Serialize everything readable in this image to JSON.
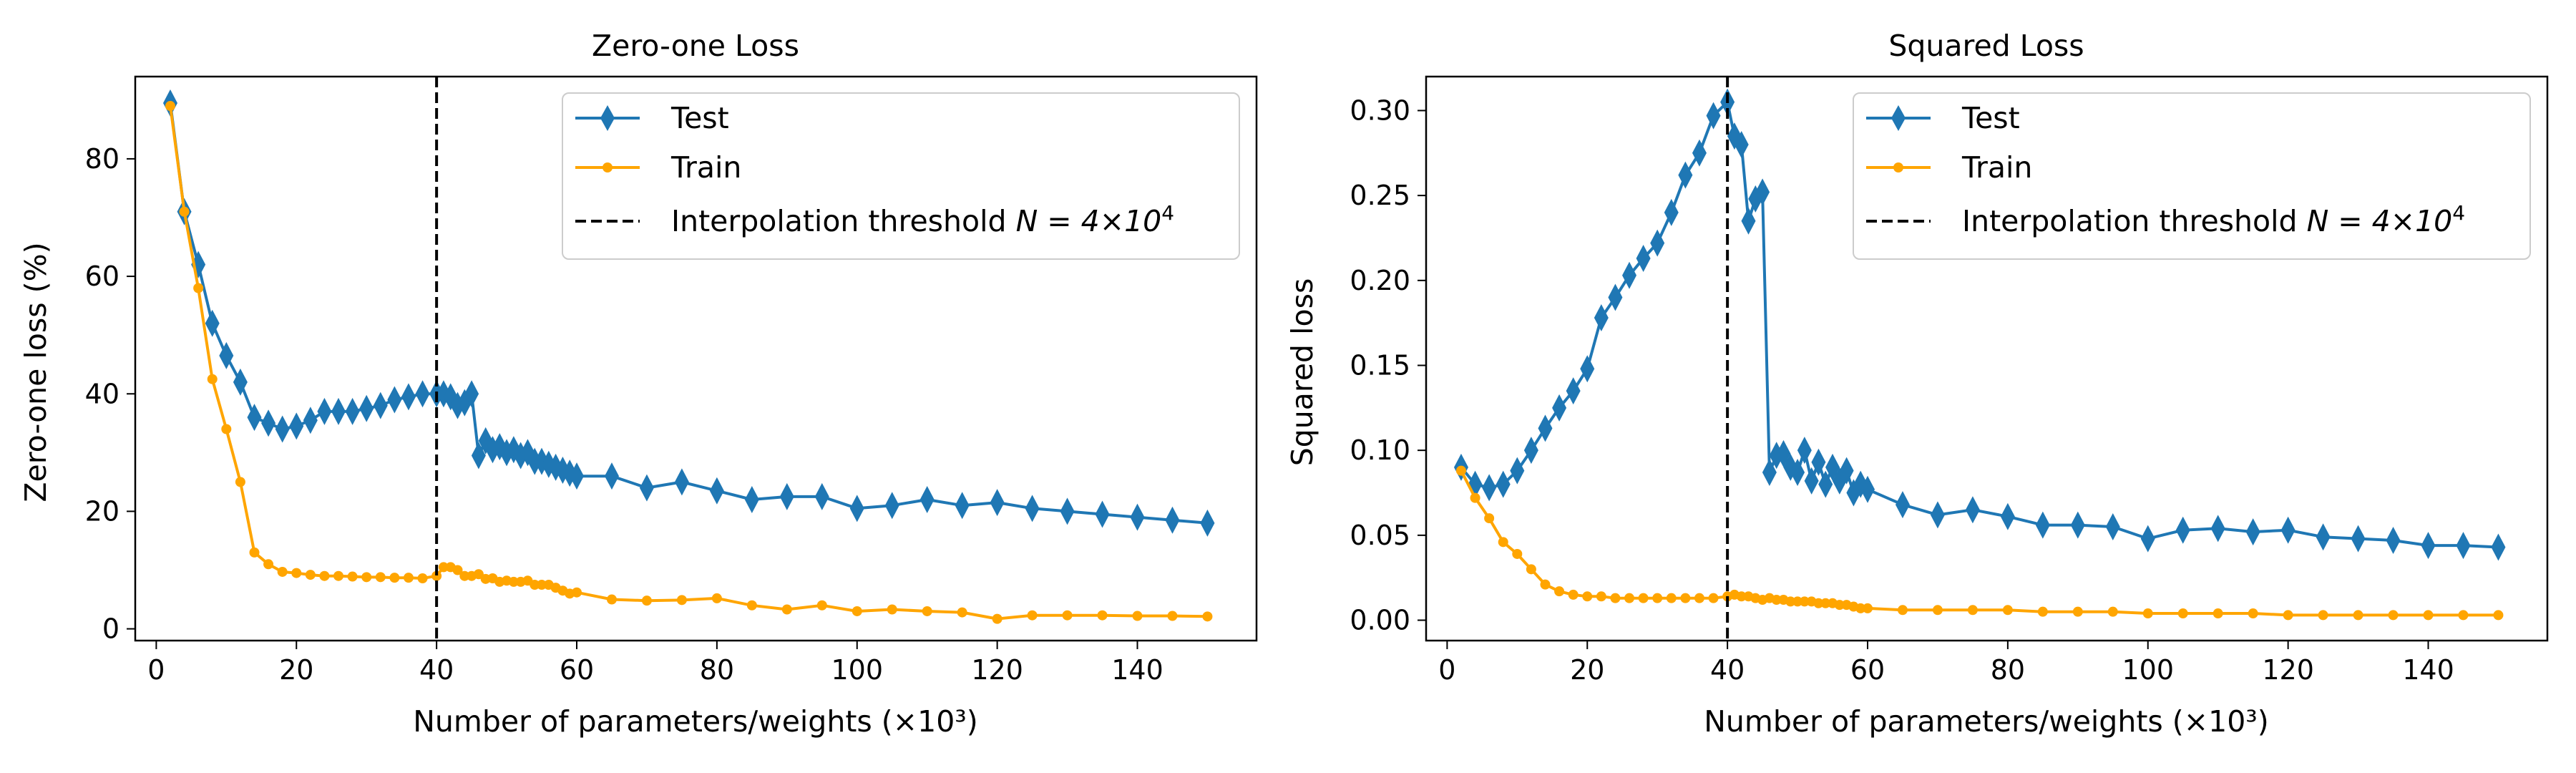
{
  "colors": {
    "test": "#1f77b4",
    "train": "#ffa500",
    "threshold": "#000000",
    "background": "#ffffff"
  },
  "chart_data": [
    {
      "type": "line",
      "title": "Zero-one Loss",
      "xlabel": "Number of parameters/weights (×10³)",
      "ylabel": "Zero-one loss (%)",
      "xlim": [
        -3,
        157
      ],
      "ylim": [
        -2,
        94
      ],
      "xticks": [
        0,
        20,
        40,
        60,
        80,
        100,
        120,
        140
      ],
      "yticks": [
        0,
        20,
        40,
        60,
        80
      ],
      "grid": false,
      "legend_position": "top-right",
      "vline": {
        "x": 40,
        "label_prefix": "Interpolation threshold ",
        "label_math": "N = 4×10",
        "label_sup": "4"
      },
      "series": [
        {
          "name": "Test",
          "marker": "diamond",
          "color_key": "test",
          "x": [
            2,
            4,
            6,
            8,
            10,
            12,
            14,
            16,
            18,
            20,
            22,
            24,
            26,
            28,
            30,
            32,
            34,
            36,
            38,
            40,
            41,
            42,
            43,
            44,
            45,
            46,
            47,
            48,
            49,
            50,
            51,
            52,
            53,
            54,
            55,
            56,
            57,
            58,
            59,
            60,
            65,
            70,
            75,
            80,
            85,
            90,
            95,
            100,
            105,
            110,
            115,
            120,
            125,
            130,
            135,
            140,
            145,
            150
          ],
          "y": [
            89.5,
            71,
            62,
            52,
            46.5,
            42,
            36,
            35,
            34,
            34.5,
            35.5,
            37,
            37,
            37,
            37.5,
            38,
            39,
            39.5,
            40,
            40,
            40,
            39.5,
            38,
            38.5,
            40,
            29.5,
            32,
            30.5,
            31,
            30,
            30.5,
            29.5,
            30,
            28.5,
            28.5,
            28,
            27.5,
            27,
            26.5,
            26,
            26,
            24,
            25,
            23.5,
            22,
            22.5,
            22.5,
            20.5,
            21,
            22,
            21,
            21.5,
            20.5,
            20,
            19.5,
            19,
            18.5,
            18
          ]
        },
        {
          "name": "Train",
          "marker": "dot",
          "color_key": "train",
          "x": [
            2,
            4,
            6,
            8,
            10,
            12,
            14,
            16,
            18,
            20,
            22,
            24,
            26,
            28,
            30,
            32,
            34,
            36,
            38,
            40,
            41,
            42,
            43,
            44,
            45,
            46,
            47,
            48,
            49,
            50,
            51,
            52,
            53,
            54,
            55,
            56,
            57,
            58,
            59,
            60,
            65,
            70,
            75,
            80,
            85,
            90,
            95,
            100,
            105,
            110,
            115,
            120,
            125,
            130,
            135,
            140,
            145,
            150
          ],
          "y": [
            89,
            71,
            58,
            42.5,
            34,
            25,
            13,
            11,
            9.7,
            9.5,
            9.2,
            9,
            9,
            8.9,
            8.8,
            8.8,
            8.7,
            8.7,
            8.6,
            9,
            10.5,
            10.5,
            10,
            9,
            9,
            9.3,
            8.5,
            8.6,
            8,
            8.2,
            8,
            8,
            8.2,
            7.5,
            7.5,
            7.5,
            7,
            6.5,
            6,
            6.2,
            5,
            4.8,
            4.9,
            5.2,
            4,
            3.3,
            4,
            3,
            3.3,
            3,
            2.8,
            1.7,
            2.3,
            2.3,
            2.3,
            2.2,
            2.2,
            2.1
          ]
        }
      ]
    },
    {
      "type": "line",
      "title": "Squared Loss",
      "xlabel": "Number of parameters/weights (×10³)",
      "ylabel": "Squared loss",
      "xlim": [
        -3,
        157
      ],
      "ylim": [
        -0.012,
        0.32
      ],
      "xticks": [
        0,
        20,
        40,
        60,
        80,
        100,
        120,
        140
      ],
      "yticks": [
        0.0,
        0.05,
        0.1,
        0.15,
        0.2,
        0.25,
        0.3
      ],
      "ytick_labels": [
        "0.00",
        "0.05",
        "0.10",
        "0.15",
        "0.20",
        "0.25",
        "0.30"
      ],
      "grid": false,
      "legend_position": "top-right",
      "vline": {
        "x": 40,
        "label_prefix": "Interpolation threshold ",
        "label_math": "N = 4×10",
        "label_sup": "4"
      },
      "series": [
        {
          "name": "Test",
          "marker": "diamond",
          "color_key": "test",
          "x": [
            2,
            4,
            6,
            8,
            10,
            12,
            14,
            16,
            18,
            20,
            22,
            24,
            26,
            28,
            30,
            32,
            34,
            36,
            38,
            40,
            41,
            42,
            43,
            44,
            45,
            46,
            47,
            48,
            49,
            50,
            51,
            52,
            53,
            54,
            55,
            56,
            57,
            58,
            59,
            60,
            65,
            70,
            75,
            80,
            85,
            90,
            95,
            100,
            105,
            110,
            115,
            120,
            125,
            130,
            135,
            140,
            145,
            150
          ],
          "y": [
            0.09,
            0.08,
            0.078,
            0.08,
            0.088,
            0.1,
            0.113,
            0.125,
            0.135,
            0.148,
            0.178,
            0.19,
            0.203,
            0.213,
            0.222,
            0.24,
            0.262,
            0.275,
            0.297,
            0.305,
            0.285,
            0.28,
            0.235,
            0.248,
            0.252,
            0.087,
            0.097,
            0.098,
            0.09,
            0.087,
            0.1,
            0.082,
            0.093,
            0.08,
            0.09,
            0.082,
            0.088,
            0.075,
            0.08,
            0.077,
            0.068,
            0.062,
            0.065,
            0.061,
            0.056,
            0.056,
            0.055,
            0.048,
            0.053,
            0.054,
            0.052,
            0.053,
            0.049,
            0.048,
            0.047,
            0.044,
            0.044,
            0.043
          ]
        },
        {
          "name": "Train",
          "marker": "dot",
          "color_key": "train",
          "x": [
            2,
            4,
            6,
            8,
            10,
            12,
            14,
            16,
            18,
            20,
            22,
            24,
            26,
            28,
            30,
            32,
            34,
            36,
            38,
            40,
            41,
            42,
            43,
            44,
            45,
            46,
            47,
            48,
            49,
            50,
            51,
            52,
            53,
            54,
            55,
            56,
            57,
            58,
            59,
            60,
            65,
            70,
            75,
            80,
            85,
            90,
            95,
            100,
            105,
            110,
            115,
            120,
            125,
            130,
            135,
            140,
            145,
            150
          ],
          "y": [
            0.088,
            0.072,
            0.06,
            0.046,
            0.039,
            0.03,
            0.021,
            0.017,
            0.015,
            0.014,
            0.014,
            0.013,
            0.013,
            0.013,
            0.013,
            0.013,
            0.013,
            0.013,
            0.013,
            0.014,
            0.015,
            0.014,
            0.014,
            0.013,
            0.012,
            0.013,
            0.012,
            0.012,
            0.011,
            0.011,
            0.011,
            0.011,
            0.01,
            0.01,
            0.01,
            0.009,
            0.009,
            0.008,
            0.007,
            0.007,
            0.006,
            0.006,
            0.006,
            0.006,
            0.005,
            0.005,
            0.005,
            0.004,
            0.004,
            0.004,
            0.004,
            0.003,
            0.003,
            0.003,
            0.003,
            0.003,
            0.003,
            0.003
          ]
        }
      ]
    }
  ]
}
